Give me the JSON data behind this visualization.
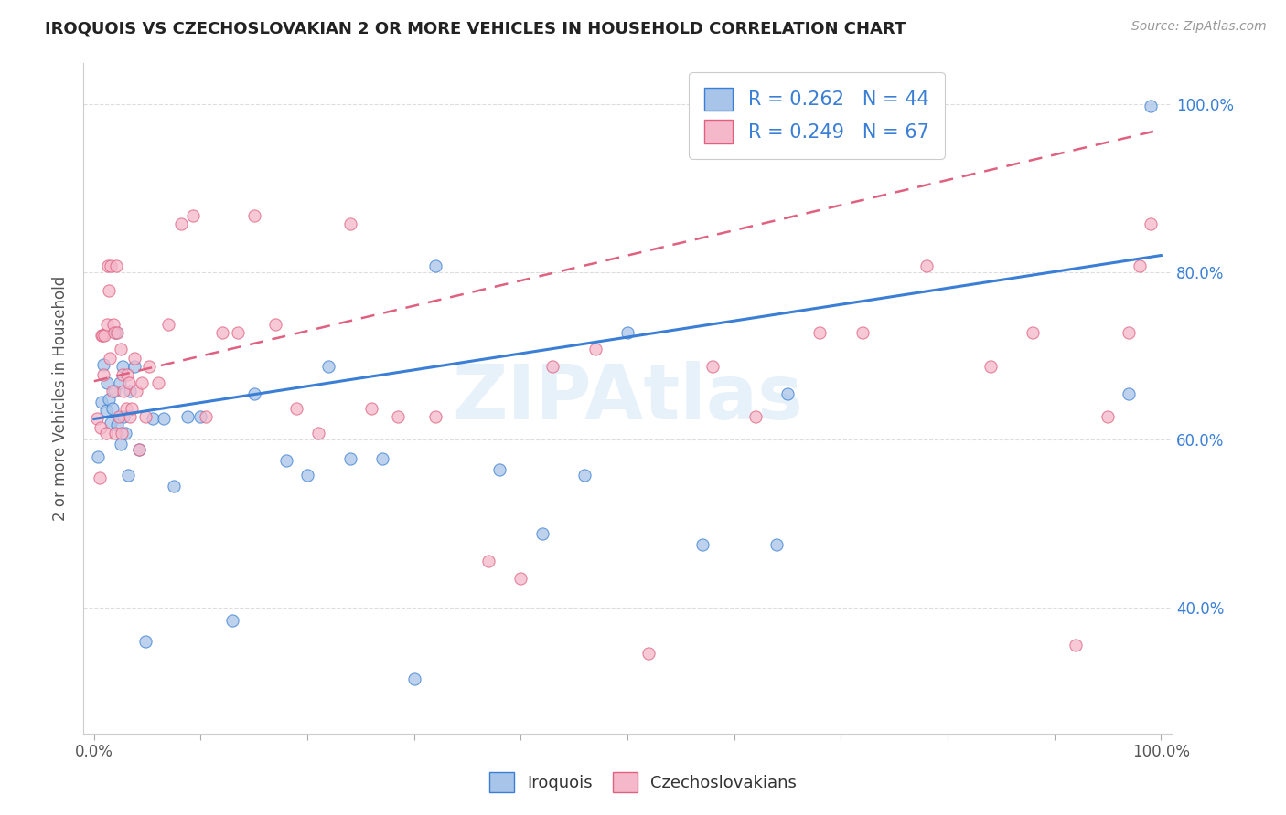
{
  "title": "IROQUOIS VS CZECHOSLOVAKIAN 2 OR MORE VEHICLES IN HOUSEHOLD CORRELATION CHART",
  "source": "Source: ZipAtlas.com",
  "ylabel": "2 or more Vehicles in Household",
  "xlim": [
    -0.01,
    1.01
  ],
  "ylim": [
    0.25,
    1.05
  ],
  "iroquois_color": "#a8c4e8",
  "czechoslovakian_color": "#f5b8ca",
  "iroquois_line_color": "#3a7fd5",
  "czechoslovakian_line_color": "#e06080",
  "R_iroquois": 0.262,
  "N_iroquois": 44,
  "R_czechoslovakian": 0.249,
  "N_czechoslovakian": 67,
  "irq_trend_x0": 0.0,
  "irq_trend_y0": 0.625,
  "irq_trend_x1": 1.0,
  "irq_trend_y1": 0.82,
  "czk_trend_x0": 0.0,
  "czk_trend_y0": 0.67,
  "czk_trend_x1": 1.0,
  "czk_trend_y1": 0.97,
  "iroquois_x": [
    0.004,
    0.007,
    0.009,
    0.011,
    0.012,
    0.014,
    0.016,
    0.017,
    0.019,
    0.021,
    0.022,
    0.024,
    0.025,
    0.027,
    0.028,
    0.029,
    0.032,
    0.034,
    0.038,
    0.042,
    0.048,
    0.055,
    0.065,
    0.075,
    0.088,
    0.1,
    0.13,
    0.15,
    0.18,
    0.2,
    0.22,
    0.24,
    0.27,
    0.3,
    0.32,
    0.38,
    0.42,
    0.46,
    0.5,
    0.57,
    0.64,
    0.65,
    0.97,
    0.99
  ],
  "iroquois_y": [
    0.58,
    0.645,
    0.69,
    0.635,
    0.668,
    0.648,
    0.62,
    0.638,
    0.658,
    0.728,
    0.618,
    0.668,
    0.595,
    0.688,
    0.628,
    0.608,
    0.558,
    0.658,
    0.688,
    0.588,
    0.36,
    0.625,
    0.625,
    0.545,
    0.628,
    0.628,
    0.385,
    0.655,
    0.575,
    0.558,
    0.688,
    0.578,
    0.578,
    0.315,
    0.808,
    0.565,
    0.488,
    0.558,
    0.728,
    0.475,
    0.475,
    0.655,
    0.655,
    0.998
  ],
  "czechoslovakian_x": [
    0.003,
    0.005,
    0.006,
    0.007,
    0.008,
    0.009,
    0.01,
    0.011,
    0.012,
    0.013,
    0.014,
    0.015,
    0.016,
    0.017,
    0.018,
    0.019,
    0.02,
    0.021,
    0.022,
    0.023,
    0.025,
    0.026,
    0.027,
    0.028,
    0.03,
    0.031,
    0.033,
    0.034,
    0.035,
    0.038,
    0.04,
    0.042,
    0.045,
    0.048,
    0.052,
    0.06,
    0.07,
    0.082,
    0.093,
    0.105,
    0.12,
    0.135,
    0.15,
    0.17,
    0.19,
    0.21,
    0.24,
    0.26,
    0.285,
    0.32,
    0.37,
    0.4,
    0.43,
    0.47,
    0.52,
    0.58,
    0.62,
    0.68,
    0.72,
    0.78,
    0.84,
    0.88,
    0.92,
    0.95,
    0.97,
    0.98,
    0.99
  ],
  "czechoslovakian_y": [
    0.625,
    0.555,
    0.615,
    0.725,
    0.725,
    0.678,
    0.725,
    0.608,
    0.738,
    0.808,
    0.778,
    0.698,
    0.808,
    0.658,
    0.738,
    0.728,
    0.608,
    0.808,
    0.728,
    0.628,
    0.708,
    0.608,
    0.678,
    0.658,
    0.638,
    0.678,
    0.668,
    0.628,
    0.638,
    0.698,
    0.658,
    0.588,
    0.668,
    0.628,
    0.688,
    0.668,
    0.738,
    0.858,
    0.868,
    0.628,
    0.728,
    0.728,
    0.868,
    0.738,
    0.638,
    0.608,
    0.858,
    0.638,
    0.628,
    0.628,
    0.455,
    0.435,
    0.688,
    0.708,
    0.345,
    0.688,
    0.628,
    0.728,
    0.728,
    0.808,
    0.688,
    0.728,
    0.355,
    0.628,
    0.728,
    0.808,
    0.858
  ],
  "watermark": "ZIPAtlas",
  "background_color": "#ffffff",
  "grid_color": "#dddddd",
  "ytick_positions": [
    0.4,
    0.6,
    0.8,
    1.0
  ],
  "ytick_labels_right": [
    "40.0%",
    "60.0%",
    "80.0%",
    "100.0%"
  ]
}
